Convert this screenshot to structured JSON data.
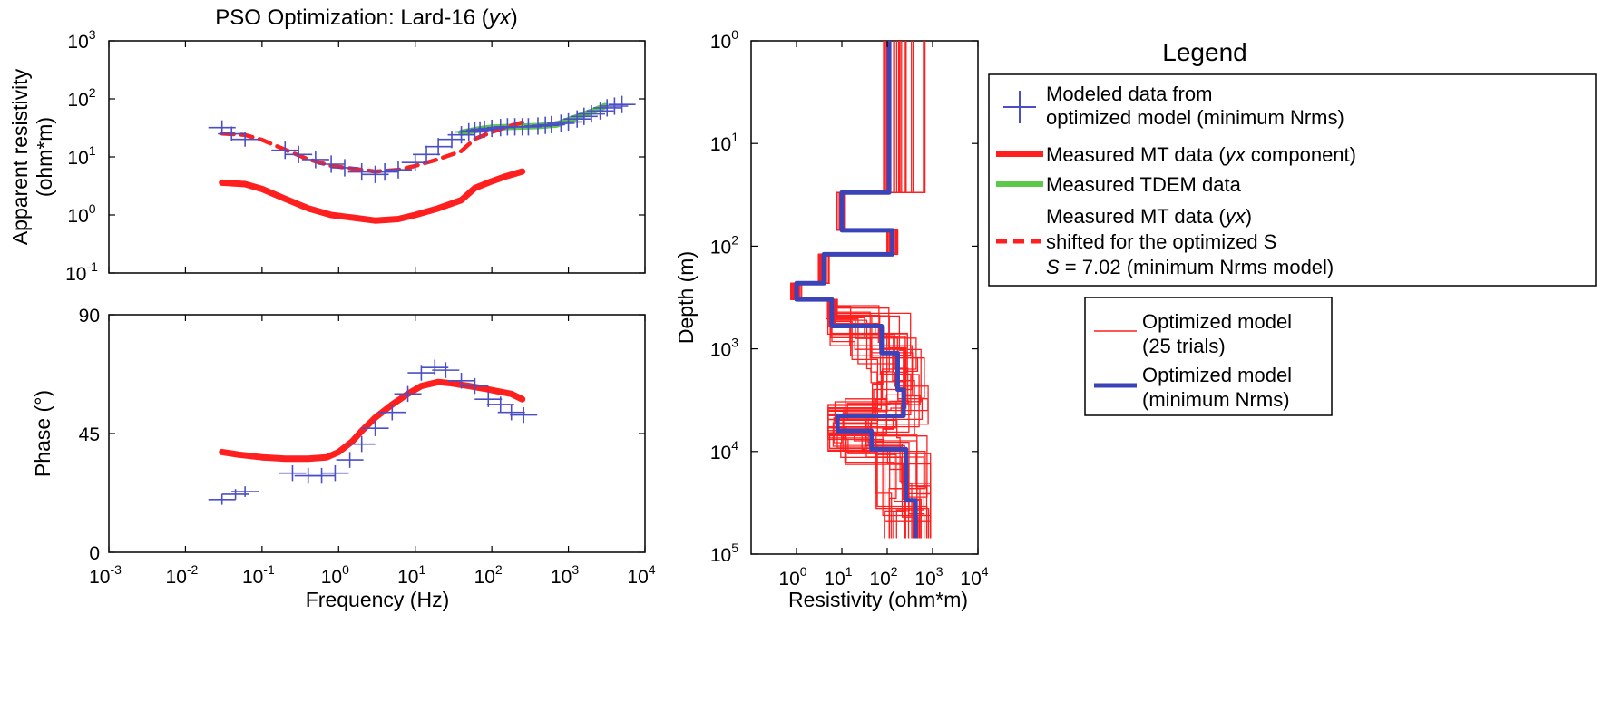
{
  "figure": {
    "title_prefix": "PSO Optimization: Lard-16 (",
    "title_italic": "yx",
    "title_suffix": ")"
  },
  "legend": {
    "title": "Legend",
    "box1": [
      {
        "id": "modeled",
        "lines": [
          "Modeled data from",
          "optimized model (minimum Nrms)"
        ],
        "symbol": "plus",
        "color": "#4b4fc6"
      },
      {
        "id": "measured_mt",
        "line_prefix": "Measured MT data (",
        "line_italic": "yx",
        "line_suffix": " component)",
        "symbol": "line",
        "color": "#ff1f1f"
      },
      {
        "id": "tdem",
        "lines": [
          "Measured TDEM data"
        ],
        "symbol": "line",
        "color": "#5ec84a"
      },
      {
        "id": "shifted",
        "line1_prefix": "Measured MT data (",
        "line1_italic": "yx",
        "line1_suffix": ")",
        "line2": "shifted for the optimized S",
        "line3_italic": "S",
        "line3_rest": " = 7.02 (minimum Nrms model)",
        "symbol": "dashed",
        "color": "#ff1f1f"
      }
    ],
    "box2": [
      {
        "id": "trials",
        "lines": [
          "Optimized model",
          "(25 trials)"
        ],
        "symbol": "thinline",
        "color": "#ff1f1f"
      },
      {
        "id": "best",
        "lines": [
          "Optimized model",
          "(minimum Nrms)"
        ],
        "symbol": "thickline",
        "color": "#3a43b8"
      }
    ]
  },
  "chart_data": [
    {
      "id": "apparent_resistivity",
      "type": "line",
      "title": "PSO Optimization: Lard-16 (yx)",
      "xlabel": "",
      "ylabel_lines": [
        "Apparent resistivity",
        "(ohm*m)"
      ],
      "xscale": "log",
      "yscale": "log",
      "xlim": [
        0.001,
        10000
      ],
      "ylim": [
        0.1,
        1000
      ],
      "yticks": [
        {
          "base": "10",
          "exp": "-1"
        },
        {
          "base": "10",
          "exp": "0"
        },
        {
          "base": "10",
          "exp": "1"
        },
        {
          "base": "10",
          "exp": "2"
        },
        {
          "base": "10",
          "exp": "3"
        }
      ],
      "grid": false,
      "series": [
        {
          "name": "Measured MT data (yx component)",
          "style": "thick",
          "color": "#ff1f1f",
          "x": [
            0.03,
            0.06,
            0.1,
            0.2,
            0.4,
            0.8,
            1.5,
            3,
            6,
            10,
            20,
            40,
            60,
            100,
            150,
            250
          ],
          "y": [
            3.6,
            3.4,
            2.8,
            1.9,
            1.3,
            1.0,
            0.9,
            0.8,
            0.85,
            1.0,
            1.3,
            1.8,
            2.9,
            3.8,
            4.6,
            5.6
          ]
        },
        {
          "name": "Measured TDEM data",
          "style": "thick",
          "color": "#5ec84a",
          "x": [
            40,
            70,
            100,
            200,
            400,
            700,
            1000,
            2000,
            3000
          ],
          "y": [
            26,
            30,
            32,
            33,
            34,
            36,
            43,
            60,
            75
          ]
        },
        {
          "name": "Measured MT data (yx) shifted for the optimized S",
          "style": "dashed",
          "color": "#ff1f1f",
          "x": [
            0.03,
            0.06,
            0.1,
            0.2,
            0.4,
            0.8,
            1.5,
            3,
            6,
            10,
            20,
            40,
            60,
            100,
            150,
            250
          ],
          "y": [
            25.3,
            23.9,
            19.7,
            13.3,
            9.1,
            7.0,
            6.3,
            5.6,
            6.0,
            7.0,
            9.1,
            12.6,
            20.4,
            26.7,
            32.3,
            39.3
          ]
        },
        {
          "name": "Modeled data from optimized model (minimum Nrms)",
          "style": "plus",
          "color": "#4b4fc6",
          "x": [
            0.03,
            0.04,
            0.06,
            0.2,
            0.3,
            0.5,
            0.8,
            1.2,
            2,
            3,
            4,
            6,
            10,
            14,
            20,
            30,
            40,
            50,
            60,
            70,
            80,
            100,
            130,
            160,
            200,
            250,
            300,
            400,
            500,
            600,
            800,
            1000,
            1300,
            1600,
            2000,
            2600,
            3200,
            4000,
            5000
          ],
          "y": [
            32,
            25,
            20,
            13,
            11,
            9,
            7.5,
            6.5,
            5.5,
            5,
            5.5,
            6,
            8,
            11,
            15,
            20,
            24,
            27,
            28,
            29,
            30,
            31,
            32,
            33,
            33,
            33,
            33,
            34,
            35,
            36,
            38,
            40,
            45,
            50,
            55,
            62,
            70,
            75,
            80
          ],
          "err": [
            0.25,
            0.25,
            0.25,
            0.3,
            0.3,
            0.3,
            0.3,
            0.3,
            0.3,
            0.3,
            0.3,
            0.3,
            0.3,
            0.3,
            0.3,
            0.3,
            0.3,
            0.3,
            0.3,
            0.3,
            0.3,
            0.3,
            0.3,
            0.3,
            0.3,
            0.3,
            0.3,
            0.3,
            0.3,
            0.3,
            0.3,
            0.3,
            0.3,
            0.3,
            0.3,
            0.3,
            0.3,
            0.3,
            0.3
          ]
        }
      ]
    },
    {
      "id": "phase",
      "type": "line",
      "xlabel": "Frequency (Hz)",
      "ylabel": "Phase (°)",
      "xscale": "log",
      "yscale": "linear",
      "xlim": [
        0.001,
        10000
      ],
      "ylim": [
        0,
        90
      ],
      "xticks": [
        {
          "base": "10",
          "exp": "-3"
        },
        {
          "base": "10",
          "exp": "-2"
        },
        {
          "base": "10",
          "exp": "-1"
        },
        {
          "base": "10",
          "exp": "0"
        },
        {
          "base": "10",
          "exp": "1"
        },
        {
          "base": "10",
          "exp": "2"
        },
        {
          "base": "10",
          "exp": "3"
        },
        {
          "base": "10",
          "exp": "4"
        }
      ],
      "yticks": [
        "0",
        "45",
        "90"
      ],
      "grid": false,
      "series": [
        {
          "name": "Measured MT data (yx component)",
          "style": "thick",
          "color": "#ff1f1f",
          "x": [
            0.03,
            0.05,
            0.1,
            0.2,
            0.4,
            0.7,
            1,
            1.5,
            2,
            3,
            5,
            8,
            12,
            20,
            30,
            50,
            80,
            120,
            180,
            250
          ],
          "y": [
            38,
            37,
            36,
            35.5,
            35.5,
            36,
            38,
            42,
            46,
            51,
            56,
            60,
            63,
            64.5,
            64,
            63,
            62,
            61,
            60,
            58
          ]
        },
        {
          "name": "Modeled data from optimized model (minimum Nrms)",
          "style": "plus",
          "color": "#4b4fc6",
          "x": [
            0.03,
            0.045,
            0.06,
            0.25,
            0.4,
            0.6,
            0.9,
            1.4,
            2,
            3,
            5,
            8,
            12,
            18,
            25,
            40,
            60,
            90,
            130,
            180,
            260
          ],
          "y": [
            20,
            22,
            23,
            30,
            29,
            29,
            30,
            35,
            41,
            47,
            53,
            60,
            68,
            70,
            69,
            65,
            63,
            58,
            56,
            53,
            52
          ],
          "err": [
            2,
            2,
            2,
            3,
            3,
            3,
            3,
            3,
            3,
            3,
            3,
            3,
            3,
            3,
            3,
            3,
            3,
            3,
            3,
            3,
            3
          ]
        }
      ]
    },
    {
      "id": "resistivity_depth",
      "type": "line",
      "xlabel": "Resistivity (ohm*m)",
      "ylabel": "Depth (m)",
      "xscale": "log",
      "yscale": "log",
      "xlim": [
        0.1,
        10000
      ],
      "ylim": [
        1,
        100000
      ],
      "y_inverted": true,
      "xticks": [
        {
          "base": "10",
          "exp": "0"
        },
        {
          "base": "10",
          "exp": "1"
        },
        {
          "base": "10",
          "exp": "2"
        },
        {
          "base": "10",
          "exp": "3"
        },
        {
          "base": "10",
          "exp": "4"
        }
      ],
      "yticks": [
        {
          "base": "10",
          "exp": "0"
        },
        {
          "base": "10",
          "exp": "1"
        },
        {
          "base": "10",
          "exp": "2"
        },
        {
          "base": "10",
          "exp": "3"
        },
        {
          "base": "10",
          "exp": "4"
        },
        {
          "base": "10",
          "exp": "5"
        }
      ],
      "grid": false,
      "best_model": {
        "name": "Optimized model (minimum Nrms)",
        "color": "#3a43b8",
        "layers": [
          {
            "top": 1,
            "bottom": 30,
            "rho": 110
          },
          {
            "top": 30,
            "bottom": 70,
            "rho": 10
          },
          {
            "top": 70,
            "bottom": 120,
            "rho": 130
          },
          {
            "top": 120,
            "bottom": 230,
            "rho": 4
          },
          {
            "top": 230,
            "bottom": 330,
            "rho": 1
          },
          {
            "top": 330,
            "bottom": 600,
            "rho": 6
          },
          {
            "top": 600,
            "bottom": 1100,
            "rho": 75
          },
          {
            "top": 1100,
            "bottom": 2500,
            "rho": 170
          },
          {
            "top": 2500,
            "bottom": 4500,
            "rho": 230
          },
          {
            "top": 4500,
            "bottom": 6300,
            "rho": 8
          },
          {
            "top": 6300,
            "bottom": 9500,
            "rho": 45
          },
          {
            "top": 9500,
            "bottom": 30000,
            "rho": 260
          },
          {
            "top": 30000,
            "bottom": 70000,
            "rho": 420
          }
        ]
      },
      "trials": {
        "name": "Optimized model (25 trials)",
        "color": "#ff1f1f",
        "count": 25,
        "shallow_rho_range": [
          60,
          700
        ],
        "deep_rho_range": [
          5,
          900
        ]
      }
    }
  ]
}
